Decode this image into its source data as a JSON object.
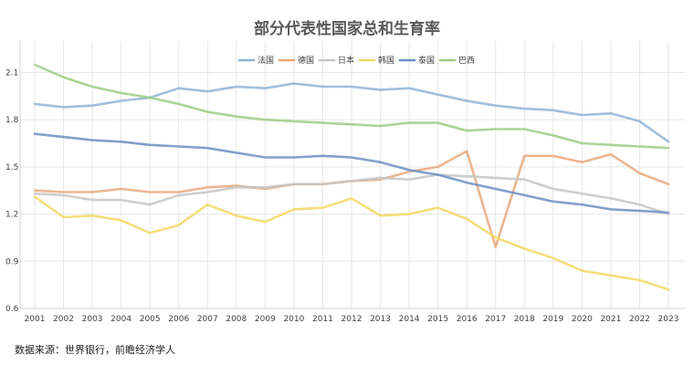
{
  "chart_data": {
    "type": "line",
    "title": "部分代表性国家总和生育率",
    "xlabel": "",
    "ylabel": "",
    "x": [
      "2001",
      "2002",
      "2003",
      "2004",
      "2005",
      "2006",
      "2007",
      "2008",
      "2009",
      "2010",
      "2011",
      "2012",
      "2013",
      "2014",
      "2015",
      "2016",
      "2017",
      "2018",
      "2019",
      "2020",
      "2021",
      "2022",
      "2023"
    ],
    "ylim": [
      0.6,
      2.3
    ],
    "yticks": [
      "2.1",
      "1.8",
      "1.5",
      "1.2",
      "0.9",
      "0.6"
    ],
    "grid": true,
    "legend_position": "top-right",
    "series": [
      {
        "name": "法国",
        "color": "#8fb4d6",
        "values": [
          1.9,
          1.88,
          1.89,
          1.92,
          1.94,
          2.0,
          1.98,
          2.01,
          2.0,
          2.03,
          2.01,
          2.01,
          1.99,
          2.0,
          1.96,
          1.92,
          1.89,
          1.87,
          1.86,
          1.83,
          1.84,
          1.79,
          1.66
        ]
      },
      {
        "name": "德国",
        "color": "#e8a87c",
        "values": [
          1.35,
          1.34,
          1.34,
          1.36,
          1.34,
          1.34,
          1.37,
          1.38,
          1.36,
          1.39,
          1.39,
          1.41,
          1.42,
          1.47,
          1.5,
          1.6,
          0.99,
          1.57,
          1.57,
          1.53,
          1.58,
          1.46,
          1.39
        ]
      },
      {
        "name": "日本",
        "color": "#c6c6c6",
        "values": [
          1.33,
          1.32,
          1.29,
          1.29,
          1.26,
          1.32,
          1.34,
          1.37,
          1.37,
          1.39,
          1.39,
          1.41,
          1.43,
          1.42,
          1.45,
          1.44,
          1.43,
          1.42,
          1.36,
          1.33,
          1.3,
          1.26,
          1.2
        ]
      },
      {
        "name": "韩国",
        "color": "#f2d864",
        "values": [
          1.31,
          1.18,
          1.19,
          1.16,
          1.08,
          1.13,
          1.26,
          1.19,
          1.15,
          1.23,
          1.24,
          1.3,
          1.19,
          1.2,
          1.24,
          1.17,
          1.05,
          0.98,
          0.92,
          0.84,
          0.81,
          0.78,
          0.72
        ]
      },
      {
        "name": "泰国",
        "color": "#6d8fc3",
        "values": [
          1.71,
          1.69,
          1.67,
          1.66,
          1.64,
          1.63,
          1.62,
          1.59,
          1.56,
          1.56,
          1.57,
          1.56,
          1.53,
          1.48,
          1.45,
          1.4,
          1.36,
          1.32,
          1.28,
          1.26,
          1.23,
          1.22,
          1.21
        ]
      },
      {
        "name": "巴西",
        "color": "#9ccb86",
        "values": [
          2.15,
          2.07,
          2.01,
          1.97,
          1.94,
          1.9,
          1.85,
          1.82,
          1.8,
          1.79,
          1.78,
          1.77,
          1.76,
          1.78,
          1.78,
          1.73,
          1.74,
          1.74,
          1.7,
          1.65,
          1.64,
          1.63,
          1.62
        ]
      }
    ]
  },
  "source": {
    "text": "数据来源：世界银行，前瞻经济学人"
  }
}
